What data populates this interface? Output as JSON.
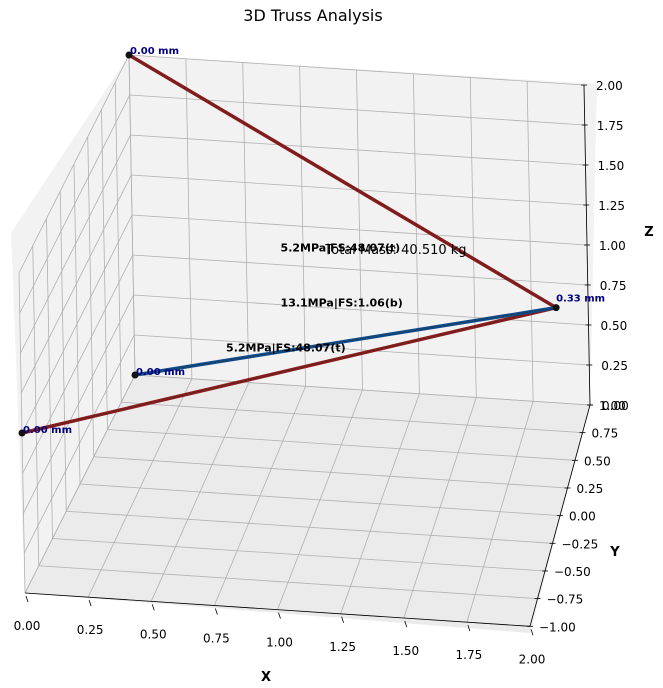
{
  "chart_data": {
    "type": "scatter",
    "title": "3D Truss Analysis",
    "xlabel": "X",
    "ylabel": "Y",
    "zlabel": "Z",
    "xlim": [
      0.0,
      2.0
    ],
    "ylim": [
      -1.0,
      1.0
    ],
    "zlim": [
      0.0,
      2.0
    ],
    "x_ticks": [
      "0.00",
      "0.25",
      "0.50",
      "0.75",
      "1.00",
      "1.25",
      "1.50",
      "1.75",
      "2.00"
    ],
    "y_ticks": [
      "1.00",
      "0.75",
      "0.50",
      "0.25",
      "0.00",
      "−0.25",
      "−0.50",
      "−0.75",
      "−1.00"
    ],
    "z_ticks": [
      "2.00",
      "1.75",
      "1.50",
      "1.25",
      "1.00",
      "0.75",
      "0.50",
      "0.25",
      "0.00"
    ],
    "grid": true,
    "nodes": [
      {
        "id": "n1",
        "x": 0.0,
        "y": 1.0,
        "z": 2.0,
        "disp_label": "0.00 mm"
      },
      {
        "id": "n2",
        "x": 0.0,
        "y": 1.0,
        "z": 0.0,
        "disp_label": "0.00 mm"
      },
      {
        "id": "n3",
        "x": 0.0,
        "y": -1.0,
        "z": 1.0,
        "disp_label": "0.00 mm"
      },
      {
        "id": "n4",
        "x": 2.0,
        "y": 0.0,
        "z": 1.3,
        "disp_label": "0.33 mm"
      }
    ],
    "members": [
      {
        "from": "n1",
        "to": "n4",
        "label": "5.2MPa|FS:48.07(t)",
        "state": "tension",
        "color": "#8b1a1a"
      },
      {
        "from": "n3",
        "to": "n4",
        "label": "5.2MPa|FS:48.07(t)",
        "state": "tension",
        "color": "#8b1a1a"
      },
      {
        "from": "n2",
        "to": "n4",
        "label": "13.1MPa|FS:1.06(b)",
        "state": "buckling",
        "color": "#0d4a8a"
      }
    ],
    "annotation": "Total Mass: 40.510 kg"
  }
}
